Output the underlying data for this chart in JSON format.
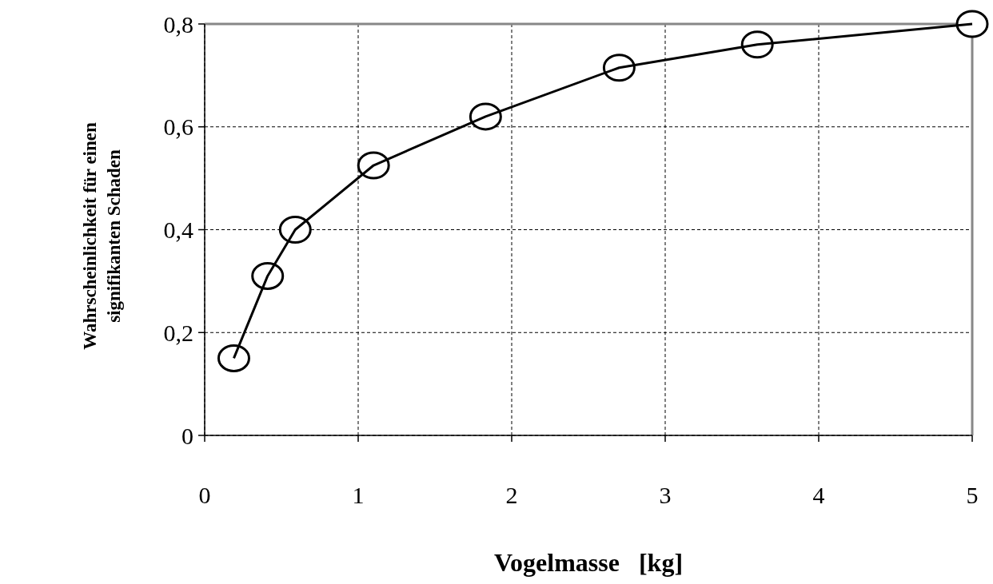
{
  "chart_data": {
    "type": "line",
    "xlabel": "Vogelmasse   [kg]",
    "ylabel": "Wahrscheinlichkeit für einen\nsignifikanten Schaden",
    "x": [
      0.19,
      0.41,
      0.59,
      1.1,
      1.83,
      2.7,
      3.6,
      5
    ],
    "series": [
      {
        "color": "#000000",
        "values": [
          0.15,
          0.31,
          0.4,
          0.525,
          0.62,
          0.715,
          0.76,
          0.8
        ]
      }
    ],
    "xlim": [
      0,
      5
    ],
    "xticks": [
      0,
      1,
      2,
      3,
      4,
      5
    ],
    "ylim": [
      0,
      0.8
    ],
    "yticks": [
      {
        "value": 0,
        "label": "0"
      },
      {
        "value": 0.2,
        "label": "0,2"
      },
      {
        "value": 0.4,
        "label": "0,4"
      },
      {
        "value": 0.6,
        "label": "0,6"
      },
      {
        "value": 0.8,
        "label": "0,8"
      }
    ],
    "grid": true,
    "marker": "circle",
    "line_style": "solid"
  }
}
